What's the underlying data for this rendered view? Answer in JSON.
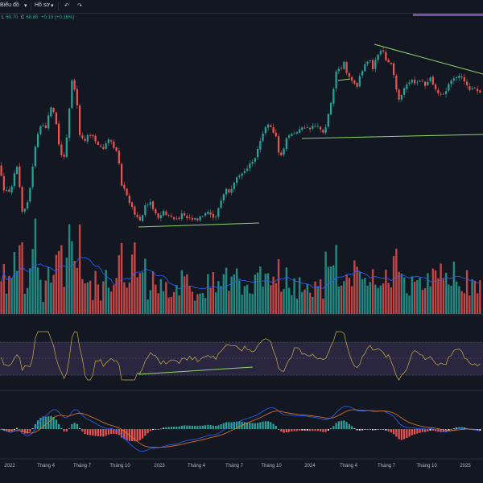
{
  "toolbar": {
    "items": [
      "Biểu đồ",
      "Hồ sơ"
    ],
    "undo_icon": "undo-icon",
    "redo_icon": "redo-icon"
  },
  "ohlc": {
    "l_label": "L",
    "l_value": "60.70",
    "c_label": "C",
    "c_value": "60.80",
    "change": "+0.10 (+0.16%)"
  },
  "colors": {
    "up": "#26a69a",
    "down": "#ef5350",
    "trend": "#8fd66b",
    "rsi": "#c8b04a",
    "macd": "#2962ff",
    "signal": "#e07a2e",
    "ma": "#2962ff",
    "rsi_band": "#2a2640",
    "purple": "#7b4ea3"
  },
  "chart_data": {
    "type": "candlestick",
    "x_ticks": [
      "2022",
      "Tháng 4",
      "Tháng 7",
      "Tháng 10",
      "2023",
      "Tháng 4",
      "Tháng 7",
      "Tháng 10",
      "2024",
      "Tháng 4",
      "Tháng 7",
      "Tháng 10",
      "2025"
    ],
    "price_keypoints": [
      [
        0,
        205
      ],
      [
        6,
        235
      ],
      [
        14,
        240
      ],
      [
        22,
        200
      ],
      [
        30,
        270
      ],
      [
        38,
        240
      ],
      [
        46,
        175
      ],
      [
        52,
        155
      ],
      [
        58,
        160
      ],
      [
        64,
        130
      ],
      [
        70,
        145
      ],
      [
        74,
        175
      ],
      [
        80,
        200
      ],
      [
        86,
        160
      ],
      [
        90,
        100
      ],
      [
        96,
        115
      ],
      [
        100,
        165
      ],
      [
        106,
        175
      ],
      [
        112,
        165
      ],
      [
        118,
        170
      ],
      [
        124,
        180
      ],
      [
        130,
        185
      ],
      [
        136,
        175
      ],
      [
        142,
        180
      ],
      [
        148,
        190
      ],
      [
        152,
        230
      ],
      [
        158,
        240
      ],
      [
        164,
        255
      ],
      [
        170,
        270
      ],
      [
        176,
        275
      ],
      [
        182,
        255
      ],
      [
        188,
        250
      ],
      [
        194,
        265
      ],
      [
        200,
        270
      ],
      [
        206,
        262
      ],
      [
        212,
        270
      ],
      [
        220,
        275
      ],
      [
        228,
        265
      ],
      [
        236,
        270
      ],
      [
        244,
        272
      ],
      [
        252,
        270
      ],
      [
        260,
        265
      ],
      [
        266,
        270
      ],
      [
        270,
        268
      ],
      [
        276,
        250
      ],
      [
        282,
        235
      ],
      [
        288,
        240
      ],
      [
        294,
        225
      ],
      [
        300,
        215
      ],
      [
        306,
        210
      ],
      [
        312,
        205
      ],
      [
        318,
        195
      ],
      [
        324,
        175
      ],
      [
        330,
        160
      ],
      [
        336,
        155
      ],
      [
        340,
        160
      ],
      [
        344,
        170
      ],
      [
        348,
        190
      ],
      [
        352,
        195
      ],
      [
        356,
        175
      ],
      [
        362,
        168
      ],
      [
        368,
        165
      ],
      [
        374,
        162
      ],
      [
        380,
        158
      ],
      [
        386,
        160
      ],
      [
        392,
        156
      ],
      [
        398,
        160
      ],
      [
        404,
        165
      ],
      [
        408,
        148
      ],
      [
        412,
        130
      ],
      [
        416,
        110
      ],
      [
        420,
        80
      ],
      [
        424,
        92
      ],
      [
        428,
        75
      ],
      [
        432,
        88
      ],
      [
        436,
        95
      ],
      [
        440,
        100
      ],
      [
        444,
        110
      ],
      [
        448,
        95
      ],
      [
        452,
        88
      ],
      [
        456,
        80
      ],
      [
        460,
        70
      ],
      [
        464,
        85
      ],
      [
        468,
        75
      ],
      [
        472,
        68
      ],
      [
        476,
        62
      ],
      [
        480,
        72
      ],
      [
        484,
        78
      ],
      [
        488,
        82
      ],
      [
        492,
        100
      ],
      [
        496,
        128
      ],
      [
        500,
        118
      ],
      [
        506,
        108
      ],
      [
        512,
        100
      ],
      [
        518,
        104
      ],
      [
        524,
        100
      ],
      [
        530,
        106
      ],
      [
        536,
        98
      ],
      [
        542,
        110
      ],
      [
        548,
        116
      ],
      [
        554,
        118
      ],
      [
        560,
        104
      ],
      [
        566,
        96
      ],
      [
        572,
        92
      ],
      [
        576,
        100
      ],
      [
        580,
        106
      ],
      [
        584,
        110
      ],
      [
        590,
        110
      ],
      [
        596,
        114
      ],
      [
        600,
        114
      ]
    ],
    "trendlines": [
      {
        "pane": "price",
        "x1": 172,
        "y1": 282,
        "x2": 322,
        "y2": 277
      },
      {
        "pane": "price",
        "x1": 375,
        "y1": 172,
        "x2": 600,
        "y2": 167
      },
      {
        "pane": "price",
        "x1": 465,
        "y1": 55,
        "x2": 600,
        "y2": 92
      },
      {
        "pane": "price",
        "x1": 420,
        "y1": 100,
        "x2": 435,
        "y2": 98
      },
      {
        "pane": "rsi",
        "x1": 172,
        "y1": 465,
        "x2": 314,
        "y2": 456
      }
    ]
  }
}
